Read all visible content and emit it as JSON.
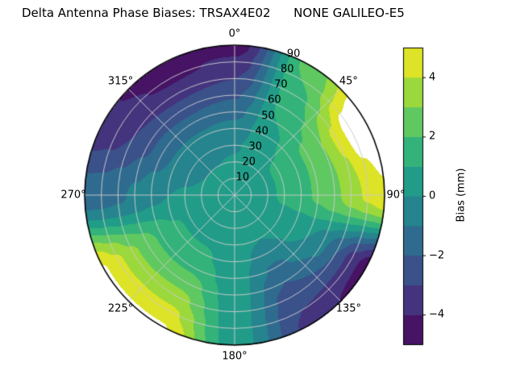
{
  "title": "Delta Antenna Phase Biases: TRSAX4E02      NONE GALILEO-E5",
  "chart_data": {
    "type": "heatmap",
    "projection": "polar",
    "title": "Delta Antenna Phase Biases: TRSAX4E02      NONE GALILEO-E5",
    "colormap": "viridis",
    "over_range_color": "#ffffff",
    "grid": true,
    "azimuth_deg": [
      0,
      30,
      60,
      90,
      120,
      150,
      180,
      210,
      240,
      270,
      300,
      330
    ],
    "zenith_deg": [
      0,
      10,
      20,
      30,
      40,
      50,
      60,
      70,
      80,
      90
    ],
    "bias_mm": [
      [
        0.3,
        0.3,
        0.3,
        0.3,
        0.3,
        0.3,
        0.3,
        0.3,
        0.3,
        0.3,
        0.3,
        0.3
      ],
      [
        0.3,
        0.4,
        0.5,
        0.5,
        0.4,
        0.3,
        0.3,
        0.3,
        0.3,
        0.2,
        0.2,
        0.2
      ],
      [
        0.1,
        0.5,
        0.8,
        0.8,
        0.5,
        0.2,
        0.3,
        0.5,
        0.5,
        0.2,
        0.0,
        0.0
      ],
      [
        -0.1,
        0.6,
        1.2,
        1.2,
        0.5,
        0.0,
        0.3,
        0.8,
        0.8,
        0.1,
        -0.3,
        -0.3
      ],
      [
        -0.6,
        0.8,
        1.6,
        1.6,
        0.3,
        -0.5,
        0.4,
        1.2,
        1.2,
        0.0,
        -0.8,
        -0.8
      ],
      [
        -1.3,
        1.0,
        2.2,
        2.2,
        0.0,
        -1.2,
        0.4,
        1.8,
        1.8,
        -0.3,
        -1.5,
        -1.6
      ],
      [
        -2.1,
        1.3,
        3.0,
        2.8,
        -0.8,
        -2.0,
        0.5,
        2.6,
        2.5,
        -0.8,
        -2.2,
        -2.4
      ],
      [
        -3.0,
        1.6,
        4.2,
        3.5,
        -2.0,
        -2.6,
        0.5,
        3.4,
        3.2,
        -1.2,
        -3.0,
        -3.4
      ],
      [
        -3.8,
        2.0,
        5.6,
        4.2,
        -3.5,
        -3.0,
        0.5,
        4.3,
        4.2,
        -1.5,
        -3.5,
        -4.2
      ],
      [
        -4.6,
        2.3,
        6.2,
        4.8,
        -4.8,
        -3.2,
        0.5,
        5.1,
        5.1,
        -1.6,
        -3.8,
        -4.7
      ]
    ],
    "contour_levels": {
      "min": -5,
      "max": 5,
      "step": 1
    },
    "theta_tick_angles_deg": [
      0,
      45,
      90,
      135,
      180,
      225,
      270,
      315
    ],
    "theta_tick_labels": [
      "0°",
      "45°",
      "90°",
      "135°",
      "180°",
      "225°",
      "270°",
      "315°"
    ],
    "radial_tick_values": [
      10,
      20,
      30,
      40,
      50,
      60,
      70,
      80,
      90
    ],
    "radial_tick_labels": [
      "10",
      "20",
      "30",
      "40",
      "50",
      "60",
      "70",
      "80",
      "90"
    ],
    "radial_label_angle_deg": 22.5,
    "colorbar": {
      "label": "Bias (mm)",
      "range": [
        -5,
        5
      ],
      "tick_values": [
        -4,
        -2,
        0,
        2,
        4
      ],
      "tick_labels": [
        "−4",
        "−2",
        "0",
        "2",
        "4"
      ],
      "position": "right"
    }
  }
}
